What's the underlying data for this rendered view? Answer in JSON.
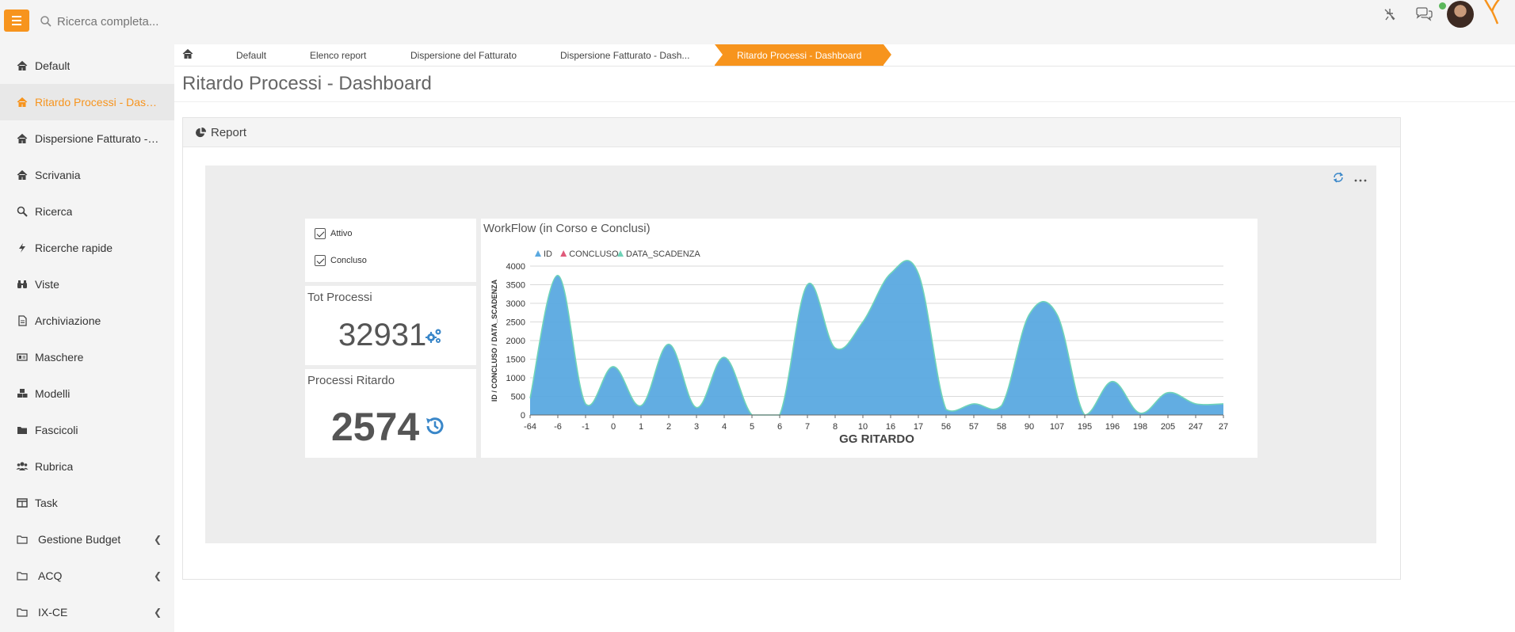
{
  "search": {
    "placeholder": "Ricerca completa..."
  },
  "sidebar": {
    "items": [
      {
        "label": "Default",
        "icon": "home-icon"
      },
      {
        "label": "Ritardo Processi - Dashboard",
        "icon": "home-icon",
        "active": true
      },
      {
        "label": "Dispersione Fatturato - Dashboard",
        "icon": "home-icon"
      },
      {
        "label": "Scrivania",
        "icon": "home-icon"
      },
      {
        "label": "Ricerca",
        "icon": "search-icon"
      },
      {
        "label": "Ricerche rapide",
        "icon": "bolt-icon"
      },
      {
        "label": "Viste",
        "icon": "binoculars-icon"
      },
      {
        "label": "Archiviazione",
        "icon": "file-icon"
      },
      {
        "label": "Maschere",
        "icon": "form-icon"
      },
      {
        "label": "Modelli",
        "icon": "cubes-icon"
      },
      {
        "label": "Fascicoli",
        "icon": "folder-icon"
      },
      {
        "label": "Rubrica",
        "icon": "users-icon"
      },
      {
        "label": "Task",
        "icon": "table-icon"
      },
      {
        "label": "Gestione Budget",
        "icon": "folder-open-icon",
        "submenu": true
      },
      {
        "label": "ACQ",
        "icon": "folder-open-icon",
        "submenu": true
      },
      {
        "label": "IX-CE",
        "icon": "folder-open-icon",
        "submenu": true
      }
    ]
  },
  "breadcrumb": {
    "items": [
      "Default",
      "Elenco report",
      "Dispersione del Fatturato",
      "Dispersione Fatturato - Dash...",
      "Ritardo Processi - Dashboard"
    ]
  },
  "page": {
    "title": "Ritardo Processi - Dashboard"
  },
  "panel": {
    "title": "Report"
  },
  "filters": {
    "items": [
      {
        "label": "Attivo",
        "checked": true
      },
      {
        "label": "Concluso",
        "checked": true
      }
    ]
  },
  "kpis": {
    "tot": {
      "title": "Tot Processi",
      "value": "32931"
    },
    "late": {
      "title": "Processi Ritardo",
      "value": "2574"
    }
  },
  "colors": {
    "accent": "#f7941d",
    "series_id": "#5aa9e0",
    "series_concluso": "#e05a7a",
    "series_data_scadenza": "#6fd3b8"
  },
  "chart_data": {
    "type": "area",
    "title": "WorkFlow (in Corso e Conclusi)",
    "xlabel": "GG RITARDO",
    "ylabel": "ID / CONCLUSO / DATA_SCADENZA",
    "legend": [
      "ID",
      "CONCLUSO",
      "DATA_SCADENZA"
    ],
    "legend_position": "top-left",
    "grid": true,
    "ylim": [
      0,
      4000
    ],
    "yticks": [
      0,
      500,
      1000,
      1500,
      2000,
      2500,
      3000,
      3500,
      4000
    ],
    "categories": [
      "-64",
      "-6",
      "-1",
      "0",
      "1",
      "2",
      "3",
      "4",
      "5",
      "6",
      "7",
      "8",
      "10",
      "16",
      "17",
      "56",
      "57",
      "58",
      "90",
      "107",
      "195",
      "196",
      "198",
      "205",
      "247",
      "27"
    ],
    "series": [
      {
        "name": "ID",
        "values": [
          450,
          3750,
          300,
          1300,
          250,
          1900,
          200,
          1550,
          0,
          0,
          3500,
          1800,
          2500,
          3800,
          3800,
          150,
          300,
          250,
          2700,
          2700,
          0,
          900,
          50,
          600,
          300,
          300
        ]
      }
    ]
  }
}
